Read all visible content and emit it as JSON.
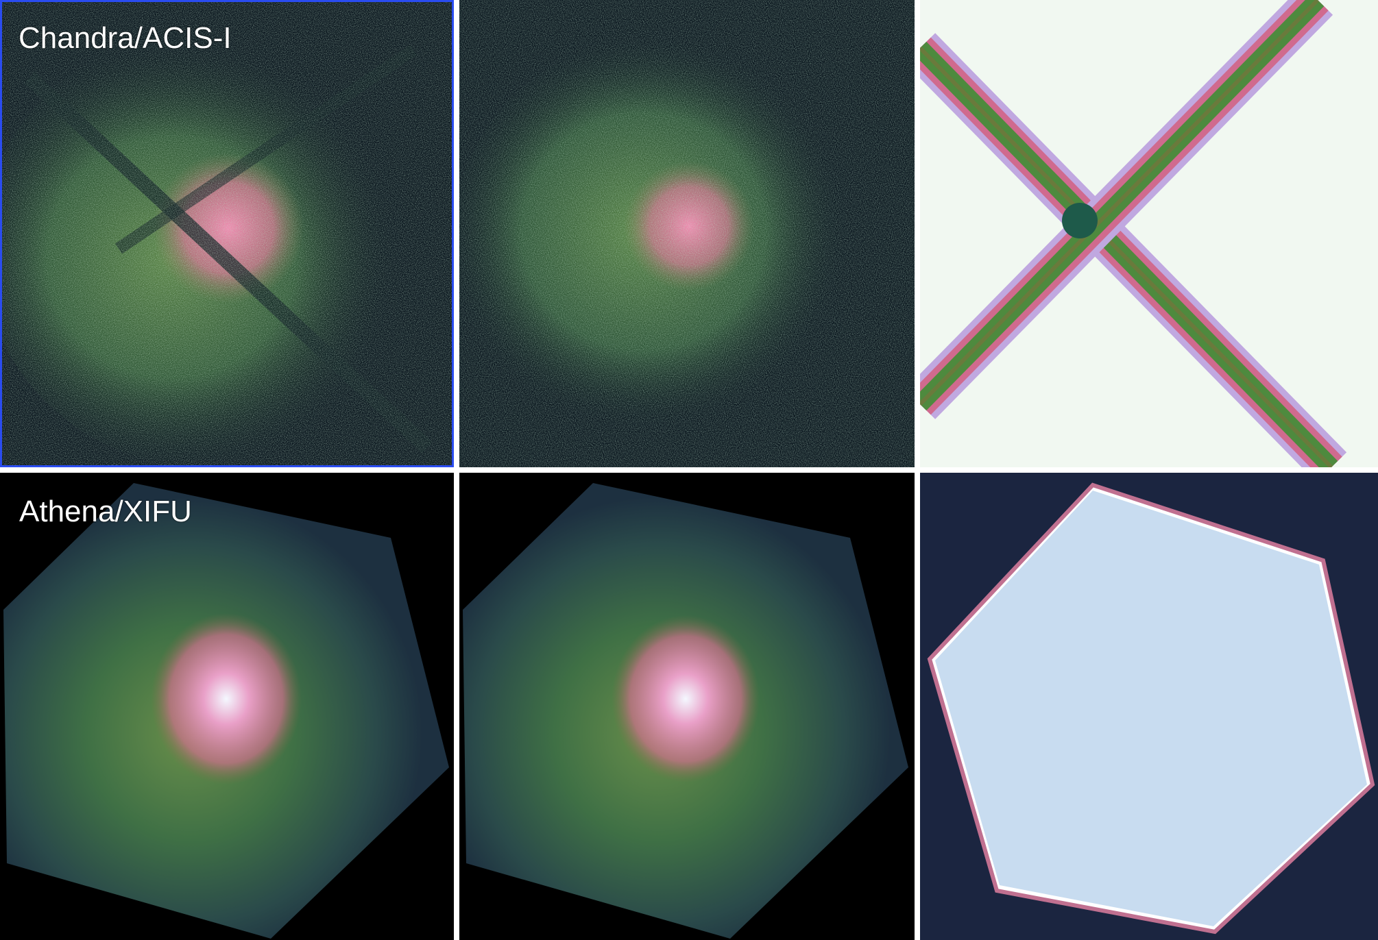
{
  "panels": {
    "chandra_label": "Chandra/ACIS-I",
    "athena_label": "Athena/XIFU"
  },
  "colors": {
    "selected_border": "#2a4cf0",
    "background_dark": "#09141d",
    "mask_bg_light": "#f1f8f1",
    "mask_bg_dark": "#1b2540",
    "hexagon_fill": "#c8dcf0",
    "emission_green": "#4e7a3a",
    "emission_pink": "#e07fa0",
    "core_white": "#f4f8ff"
  }
}
